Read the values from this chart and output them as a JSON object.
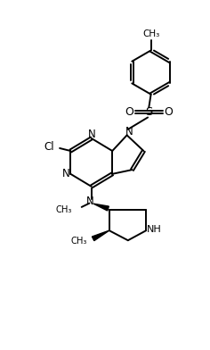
{
  "background_color": "#ffffff",
  "line_color": "#000000",
  "line_width": 1.4,
  "figsize": [
    2.36,
    3.92
  ],
  "dpi": 100,
  "xlim": [
    0,
    10
  ],
  "ylim": [
    0,
    16.6
  ]
}
